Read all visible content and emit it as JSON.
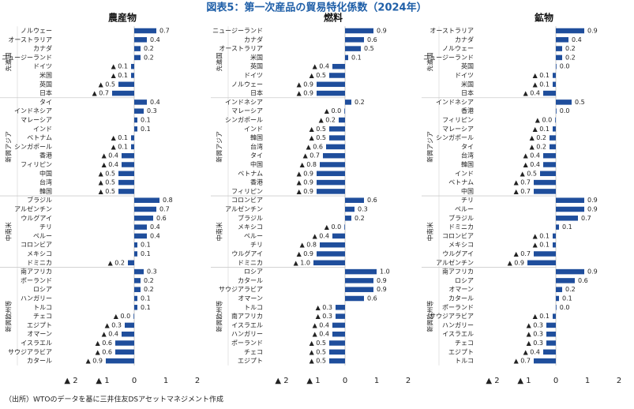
{
  "title": "図表5：第一次産品の貿易特化係数（2024年）",
  "source": "（出所）WTOのデータを基に三井住友DSアセットマネジメント作成",
  "chart_data": [
    {
      "type": "bar",
      "orientation": "horizontal",
      "title": "農産物",
      "color": "#1f4e9c",
      "xlim": [
        -2,
        2
      ],
      "xticks": [
        {
          "value": -2,
          "label": "▲ 2"
        },
        {
          "value": -1,
          "label": "▲ 1"
        },
        0,
        1,
        2
      ],
      "groups": [
        {
          "name": "先進国",
          "categories": [
            "ノルウェー",
            "オーストラリア",
            "カナダ",
            "ニュージーランド",
            "ドイツ",
            "米国",
            "英国",
            "日本"
          ],
          "values": [
            0.7,
            0.4,
            0.2,
            0.2,
            -0.1,
            -0.1,
            -0.5,
            -0.7
          ],
          "value_labels": [
            "0.7",
            "0.4",
            "0.2",
            "0.2",
            "▲ 0.1",
            "▲ 0.1",
            "▲ 0.5",
            "▲ 0.7"
          ]
        },
        {
          "name": "新興アジア",
          "categories": [
            "タイ",
            "インドネシア",
            "マレーシア",
            "インド",
            "ベトナム",
            "シンガポール",
            "香港",
            "フィリピン",
            "中国",
            "台湾",
            "韓国"
          ],
          "values": [
            0.4,
            0.3,
            0.1,
            0.1,
            -0.1,
            -0.1,
            -0.4,
            -0.4,
            -0.5,
            -0.5,
            -0.5
          ],
          "value_labels": [
            "0.4",
            "0.3",
            "0.1",
            "0.1",
            "▲ 0.1",
            "▲ 0.1",
            "▲ 0.4",
            "▲ 0.4",
            "▲ 0.5",
            "▲ 0.5",
            "▲ 0.5"
          ]
        },
        {
          "name": "中南米",
          "categories": [
            "ブラジル",
            "アルゼンチン",
            "ウルグアイ",
            "チリ",
            "ペルー",
            "コロンビア",
            "メキシコ",
            "ドミニカ"
          ],
          "values": [
            0.8,
            0.7,
            0.6,
            0.4,
            0.4,
            0.1,
            0.1,
            -0.2
          ],
          "value_labels": [
            "0.8",
            "0.7",
            "0.6",
            "0.4",
            "0.4",
            "0.1",
            "0.1",
            "▲ 0.2"
          ]
        },
        {
          "name": "新興欧州等",
          "categories": [
            "南アフリカ",
            "ポーランド",
            "ロシア",
            "ハンガリー",
            "トルコ",
            "チェコ",
            "エジプト",
            "オマーン",
            "イスラエル",
            "サウジアラビア",
            "カタール"
          ],
          "values": [
            0.3,
            0.2,
            0.2,
            0.1,
            0.1,
            -0.02,
            -0.3,
            -0.4,
            -0.6,
            -0.6,
            -0.9
          ],
          "value_labels": [
            "0.3",
            "0.2",
            "0.2",
            "0.1",
            "0.1",
            "▲ 0.0",
            "▲ 0.3",
            "▲ 0.4",
            "▲ 0.6",
            "▲ 0.6",
            "▲ 0.9"
          ]
        }
      ]
    },
    {
      "type": "bar",
      "orientation": "horizontal",
      "title": "燃料",
      "color": "#1f4e9c",
      "xlim": [
        -2,
        2
      ],
      "xticks": [
        {
          "value": -2,
          "label": "▲ 2"
        },
        {
          "value": -1,
          "label": "▲ 1"
        },
        0,
        1,
        2
      ],
      "groups": [
        {
          "name": "先進国",
          "categories": [
            "ニュージーランド",
            "カナダ",
            "オーストラリア",
            "米国",
            "英国",
            "ドイツ",
            "ノルウェー",
            "日本"
          ],
          "values": [
            0.9,
            0.6,
            0.5,
            0.1,
            -0.4,
            -0.5,
            -0.9,
            -0.9
          ],
          "value_labels": [
            "0.9",
            "0.6",
            "0.5",
            "0.1",
            "▲ 0.4",
            "▲ 0.5",
            "▲ 0.9",
            "▲ 0.9"
          ]
        },
        {
          "name": "新興アジア",
          "categories": [
            "インドネシア",
            "マレーシア",
            "シンガポール",
            "インド",
            "韓国",
            "台湾",
            "タイ",
            "中国",
            "ベトナム",
            "香港",
            "フィリピン"
          ],
          "values": [
            0.2,
            -0.02,
            -0.2,
            -0.5,
            -0.5,
            -0.6,
            -0.7,
            -0.8,
            -0.9,
            -0.9,
            -0.9
          ],
          "value_labels": [
            "0.2",
            "▲ 0.0",
            "▲ 0.2",
            "▲ 0.5",
            "▲ 0.5",
            "▲ 0.6",
            "▲ 0.7",
            "▲ 0.8",
            "▲ 0.9",
            "▲ 0.9",
            "▲ 0.9"
          ]
        },
        {
          "name": "中南米",
          "categories": [
            "コロンビア",
            "アルゼンチン",
            "ブラジル",
            "メキシコ",
            "ペルー",
            "チリ",
            "ウルグアイ",
            "ドミニカ"
          ],
          "values": [
            0.6,
            0.3,
            0.2,
            -0.02,
            -0.4,
            -0.8,
            -0.9,
            -1.0
          ],
          "value_labels": [
            "0.6",
            "0.3",
            "0.2",
            "▲ 0.0",
            "▲ 0.4",
            "▲ 0.8",
            "▲ 0.9",
            "▲ 1.0"
          ]
        },
        {
          "name": "新興欧州等",
          "categories": [
            "ロシア",
            "カタール",
            "サウジアラビア",
            "オマーン",
            "トルコ",
            "南アフリカ",
            "イスラエル",
            "ハンガリー",
            "ポーランド",
            "チェコ",
            "エジプト"
          ],
          "values": [
            1.0,
            0.9,
            0.9,
            0.6,
            -0.3,
            -0.3,
            -0.4,
            -0.4,
            -0.5,
            -0.5,
            -0.5
          ],
          "value_labels": [
            "1.0",
            "0.9",
            "0.9",
            "0.6",
            "▲ 0.3",
            "▲ 0.3",
            "▲ 0.4",
            "▲ 0.4",
            "▲ 0.5",
            "▲ 0.5",
            "▲ 0.5"
          ]
        }
      ]
    },
    {
      "type": "bar",
      "orientation": "horizontal",
      "title": "鉱物",
      "color": "#1f4e9c",
      "xlim": [
        -2,
        2
      ],
      "xticks": [
        {
          "value": -2,
          "label": "▲ 2"
        },
        {
          "value": -1,
          "label": "▲ 1"
        },
        0,
        1,
        2
      ],
      "groups": [
        {
          "name": "先進国",
          "categories": [
            "オーストラリア",
            "カナダ",
            "ノルウェー",
            "ニュージーランド",
            "英国",
            "ドイツ",
            "米国",
            "日本"
          ],
          "values": [
            0.9,
            0.4,
            0.2,
            0.2,
            0.02,
            -0.1,
            -0.1,
            -0.4
          ],
          "value_labels": [
            "0.9",
            "0.4",
            "0.2",
            "0.2",
            "0.0",
            "▲ 0.1",
            "▲ 0.1",
            "▲ 0.4"
          ]
        },
        {
          "name": "新興アジア",
          "categories": [
            "インドネシア",
            "香港",
            "フィリピン",
            "マレーシア",
            "シンガポール",
            "タイ",
            "台湾",
            "韓国",
            "インド",
            "ベトナム",
            "中国"
          ],
          "values": [
            0.5,
            0.02,
            -0.02,
            -0.1,
            -0.2,
            -0.2,
            -0.4,
            -0.4,
            -0.5,
            -0.7,
            -0.7
          ],
          "value_labels": [
            "0.5",
            "0.0",
            "▲ 0.0",
            "▲ 0.1",
            "▲ 0.2",
            "▲ 0.2",
            "▲ 0.4",
            "▲ 0.4",
            "▲ 0.5",
            "▲ 0.7",
            "▲ 0.7"
          ]
        },
        {
          "name": "中南米",
          "categories": [
            "チリ",
            "ペルー",
            "ブラジル",
            "ドミニカ",
            "コロンビア",
            "メキシコ",
            "ウルグアイ",
            "アルゼンチン"
          ],
          "values": [
            0.9,
            0.9,
            0.7,
            0.1,
            -0.1,
            -0.1,
            -0.7,
            -0.9
          ],
          "value_labels": [
            "0.9",
            "0.9",
            "0.7",
            "0.1",
            "▲ 0.1",
            "▲ 0.1",
            "▲ 0.7",
            "▲ 0.9"
          ]
        },
        {
          "name": "新興欧州等",
          "categories": [
            "南アフリカ",
            "ロシア",
            "オマーン",
            "カタール",
            "ポーランド",
            "サウジアラビア",
            "ハンガリー",
            "イスラエル",
            "チェコ",
            "エジプト",
            "トルコ"
          ],
          "values": [
            0.9,
            0.6,
            0.2,
            0.1,
            0.02,
            -0.1,
            -0.3,
            -0.3,
            -0.3,
            -0.4,
            -0.7
          ],
          "value_labels": [
            "0.9",
            "0.6",
            "0.2",
            "0.1",
            "0.0",
            "▲ 0.1",
            "▲ 0.3",
            "▲ 0.3",
            "▲ 0.3",
            "▲ 0.4",
            "▲ 0.7"
          ]
        }
      ]
    }
  ]
}
